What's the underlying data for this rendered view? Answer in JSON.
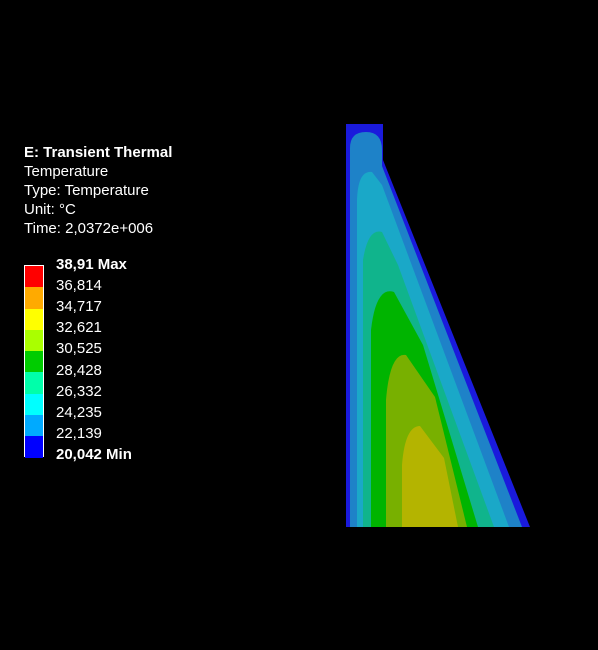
{
  "legend": {
    "title": "E: Transient Thermal",
    "result": "Temperature",
    "type_line": "Type: Temperature",
    "unit_line": "Unit: °C",
    "time_line": "Time: 2,0372e+006"
  },
  "colorbar": {
    "colors": [
      "#ff0000",
      "#ffaa00",
      "#ffff00",
      "#aaff00",
      "#00cc00",
      "#00ffaa",
      "#00ffff",
      "#00aaff",
      "#0000ff"
    ],
    "labels": [
      "38,91 Max",
      "36,814",
      "34,717",
      "32,621",
      "30,525",
      "28,428",
      "26,332",
      "24,235",
      "22,139",
      "20,042 Min"
    ]
  },
  "contour_colors": {
    "edge": "#1a1adc",
    "band1": "#1e82c8",
    "band2": "#1aa8c8",
    "band3": "#10b48c",
    "band4": "#00b400",
    "band5": "#78b000",
    "band6": "#b4b400"
  }
}
